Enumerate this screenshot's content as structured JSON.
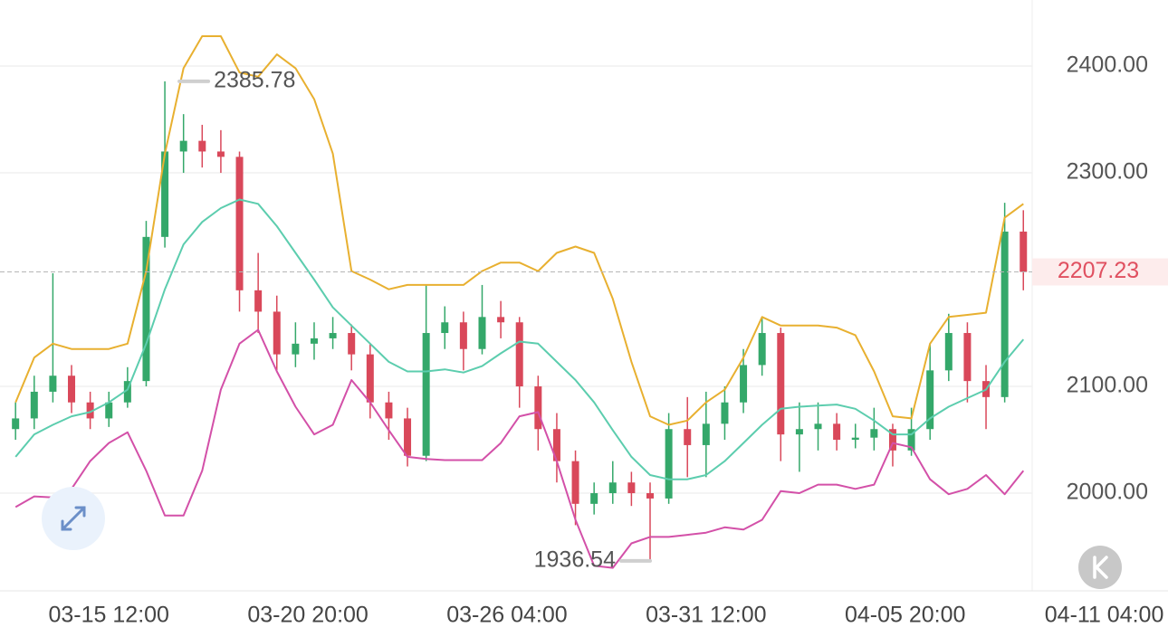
{
  "chart_data": {
    "type": "candlestick",
    "x": [
      "03-13 00:00",
      "03-13 12:00",
      "03-14 00:00",
      "03-14 12:00",
      "03-15 00:00",
      "03-15 12:00",
      "03-16 00:00",
      "03-16 12:00",
      "03-17 00:00",
      "03-17 12:00",
      "03-18 00:00",
      "03-18 12:00",
      "03-19 00:00",
      "03-19 12:00",
      "03-20 00:00",
      "03-20 12:00",
      "03-21 00:00",
      "03-21 12:00",
      "03-22 00:00",
      "03-22 12:00",
      "03-23 00:00",
      "03-23 12:00",
      "03-24 00:00",
      "03-24 12:00",
      "03-25 00:00",
      "03-25 12:00",
      "03-26 00:00",
      "03-26 12:00",
      "03-27 00:00",
      "03-27 12:00",
      "03-28 00:00",
      "03-28 12:00",
      "03-29 00:00",
      "03-29 12:00",
      "03-30 00:00",
      "03-30 12:00",
      "03-31 00:00",
      "03-31 12:00",
      "04-01 00:00",
      "04-01 12:00",
      "04-02 00:00",
      "04-02 12:00",
      "04-03 00:00",
      "04-03 12:00",
      "04-04 00:00",
      "04-04 12:00",
      "04-05 00:00",
      "04-05 12:00",
      "04-06 00:00",
      "04-06 12:00",
      "04-07 00:00",
      "04-07 12:00",
      "04-08 00:00",
      "04-08 12:00",
      "04-09 00:00"
    ],
    "open": [
      2060,
      2070,
      2095,
      2110,
      2085,
      2070,
      2085,
      2105,
      2240,
      2320,
      2330,
      2320,
      2315,
      2190,
      2170,
      2130,
      2140,
      2145,
      2150,
      2130,
      2085,
      2070,
      2035,
      2150,
      2160,
      2135,
      2165,
      2160,
      2100,
      2060,
      2030,
      1990,
      2000,
      2010,
      2000,
      1995,
      2060,
      2045,
      2065,
      2085,
      2120,
      2150,
      2055,
      2060,
      2065,
      2050,
      2052,
      2060,
      2040,
      2060,
      2115,
      2150,
      2105,
      2090,
      2245
    ],
    "high": [
      2085,
      2110,
      2206,
      2120,
      2095,
      2095,
      2118,
      2255,
      2385.78,
      2355,
      2345,
      2340,
      2320,
      2225,
      2185,
      2160,
      2160,
      2165,
      2158,
      2140,
      2095,
      2080,
      2195,
      2175,
      2170,
      2195,
      2180,
      2165,
      2110,
      2075,
      2040,
      2010,
      2030,
      2020,
      2010,
      2075,
      2090,
      2095,
      2100,
      2135,
      2165,
      2155,
      2085,
      2085,
      2075,
      2065,
      2080,
      2065,
      2080,
      2140,
      2168,
      2160,
      2120,
      2272,
      2265
    ],
    "low": [
      2050,
      2060,
      2085,
      2075,
      2060,
      2062,
      2080,
      2100,
      2230,
      2300,
      2305,
      2300,
      2170,
      2150,
      2115,
      2118,
      2125,
      2135,
      2115,
      2070,
      2050,
      2025,
      2030,
      2135,
      2115,
      2130,
      2145,
      2080,
      2040,
      2010,
      1970,
      1980,
      1990,
      1988,
      1936.54,
      1990,
      2015,
      2015,
      2050,
      2075,
      2110,
      2030,
      2020,
      2040,
      2040,
      2042,
      2040,
      2025,
      2035,
      2050,
      2105,
      2085,
      2060,
      2085,
      2190
    ],
    "close": [
      2070,
      2095,
      2110,
      2085,
      2070,
      2085,
      2105,
      2240,
      2320,
      2330,
      2320,
      2315,
      2190,
      2170,
      2130,
      2140,
      2145,
      2150,
      2130,
      2085,
      2070,
      2035,
      2150,
      2160,
      2135,
      2165,
      2160,
      2100,
      2060,
      2030,
      1990,
      2000,
      2010,
      2000,
      1995,
      2060,
      2045,
      2065,
      2085,
      2120,
      2150,
      2055,
      2060,
      2065,
      2050,
      2052,
      2060,
      2040,
      2060,
      2115,
      2150,
      2105,
      2090,
      2245,
      2207.23
    ],
    "up_color": "#34a86a",
    "down_color": "#d9485a",
    "bands": [
      {
        "color": "#e8b030",
        "values": [
          2085,
          2127,
          2140,
          2135,
          2135,
          2135,
          2140,
          2208,
          2318,
          2398,
          2428,
          2428,
          2394,
          2390,
          2411,
          2398,
          2369,
          2318,
          2208,
          2200,
          2191,
          2195,
          2195,
          2195,
          2195,
          2208,
          2216,
          2216,
          2208,
          2225,
          2231,
          2225,
          2182,
          2123,
          2072,
          2064,
          2068,
          2085,
          2097,
          2127,
          2165,
          2157,
          2157,
          2157,
          2155,
          2148,
          2114,
          2072,
          2070,
          2140,
          2165,
          2167,
          2169,
          2258,
          2271
        ]
      },
      {
        "color": "#5ccdae",
        "values": [
          2034,
          2055,
          2064,
          2072,
          2076,
          2085,
          2097,
          2140,
          2191,
          2233,
          2254,
          2267,
          2275,
          2271,
          2250,
          2225,
          2200,
          2174,
          2157,
          2140,
          2123,
          2114,
          2114,
          2116,
          2113,
          2119,
          2131,
          2142,
          2140,
          2123,
          2106,
          2085,
          2059,
          2034,
          2017,
          2013,
          2013,
          2017,
          2030,
          2047,
          2064,
          2079,
          2081,
          2082,
          2083,
          2079,
          2068,
          2055,
          2055,
          2070,
          2081,
          2089,
          2097,
          2123,
          2144
        ]
      },
      {
        "color": "#d350a8",
        "values": [
          1987,
          1997,
          1996,
          2004,
          2030,
          2047,
          2057,
          2021,
          1979,
          1979,
          2021,
          2097,
          2140,
          2153,
          2114,
          2081,
          2055,
          2064,
          2106,
          2085,
          2059,
          2034,
          2032,
          2031,
          2031,
          2031,
          2047,
          2072,
          2076,
          2030,
          1975,
          1932,
          1930,
          1953,
          1959,
          1959,
          1961,
          1963,
          1968,
          1966,
          1975,
          2002,
          2000,
          2008,
          2008,
          2004,
          2008,
          2047,
          2043,
          2013,
          1999,
          2004,
          2017,
          1999,
          2021
        ]
      }
    ],
    "xlim": [
      "03-12 14:00",
      "04-12 21:00"
    ],
    "xticks": [
      "03-15 12:00",
      "03-20 20:00",
      "03-26 04:00",
      "03-31 12:00",
      "04-05 20:00",
      "04-11 04:00"
    ],
    "ylim": [
      1908.5,
      2461.9
    ],
    "yticks": [
      {
        "value": 2000,
        "label": "2000.00"
      },
      {
        "value": 2100,
        "label": "2100.00"
      },
      {
        "value": 2300,
        "label": "2300.00"
      },
      {
        "value": 2400,
        "label": "2400.00"
      }
    ],
    "grid": true
  }
}
